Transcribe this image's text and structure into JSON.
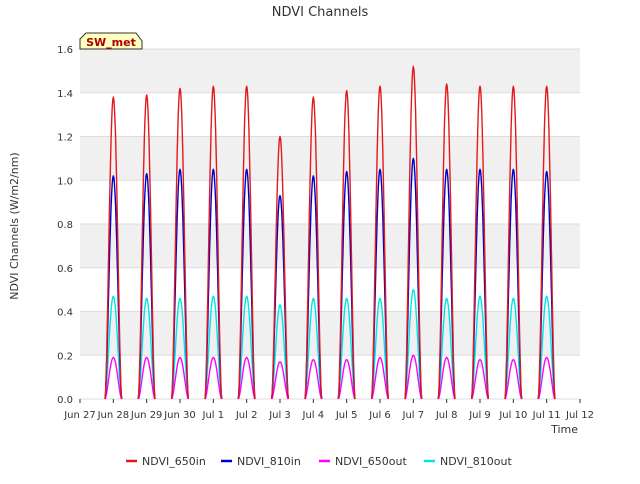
{
  "chart_data": {
    "type": "line",
    "title": "NDVI Channels",
    "xlabel": "Time",
    "ylabel": "NDVI Channels (W/m2/nm)",
    "site_badge": "SW_met",
    "ylim": [
      0.0,
      1.6
    ],
    "yticks": [
      "0.0",
      "0.2",
      "0.4",
      "0.6",
      "0.8",
      "1.0",
      "1.2",
      "1.4",
      "1.6"
    ],
    "xlim_days": [
      27,
      42
    ],
    "xticks": [
      "Jun 27",
      "Jun 28",
      "Jun 29",
      "Jun 30",
      "Jul 1",
      "Jul 2",
      "Jul 3",
      "Jul 4",
      "Jul 5",
      "Jul 6",
      "Jul 7",
      "Jul 8",
      "Jul 9",
      "Jul 10",
      "Jul 11",
      "Jul 12"
    ],
    "grid": true,
    "background_bands": true,
    "legend_position": "bottom",
    "colors": {
      "NDVI_650in": "#e31a1c",
      "NDVI_810in": "#0000cc",
      "NDVI_650out": "#ff00ff",
      "NDVI_810out": "#00e5e5",
      "badge_fill": "#ffffc0",
      "badge_text": "#aa0000"
    },
    "days": [
      "Jun 28",
      "Jun 29",
      "Jun 30",
      "Jul 1",
      "Jul 2",
      "Jul 3",
      "Jul 4",
      "Jul 5",
      "Jul 6",
      "Jul 7",
      "Jul 8",
      "Jul 9",
      "Jul 10",
      "Jul 11"
    ],
    "series": [
      {
        "name": "NDVI_650in",
        "daily_peak": [
          1.38,
          1.39,
          1.42,
          1.43,
          1.43,
          1.2,
          1.38,
          1.41,
          1.43,
          1.52,
          1.44,
          1.43,
          1.43,
          1.43
        ]
      },
      {
        "name": "NDVI_810in",
        "daily_peak": [
          1.02,
          1.03,
          1.05,
          1.05,
          1.05,
          0.93,
          1.02,
          1.04,
          1.05,
          1.1,
          1.05,
          1.05,
          1.05,
          1.04
        ]
      },
      {
        "name": "NDVI_650out",
        "daily_peak": [
          0.19,
          0.19,
          0.19,
          0.19,
          0.19,
          0.17,
          0.18,
          0.18,
          0.19,
          0.2,
          0.19,
          0.18,
          0.18,
          0.19
        ]
      },
      {
        "name": "NDVI_810out",
        "daily_peak": [
          0.47,
          0.46,
          0.46,
          0.47,
          0.47,
          0.43,
          0.46,
          0.46,
          0.46,
          0.5,
          0.46,
          0.47,
          0.46,
          0.47
        ]
      }
    ]
  }
}
